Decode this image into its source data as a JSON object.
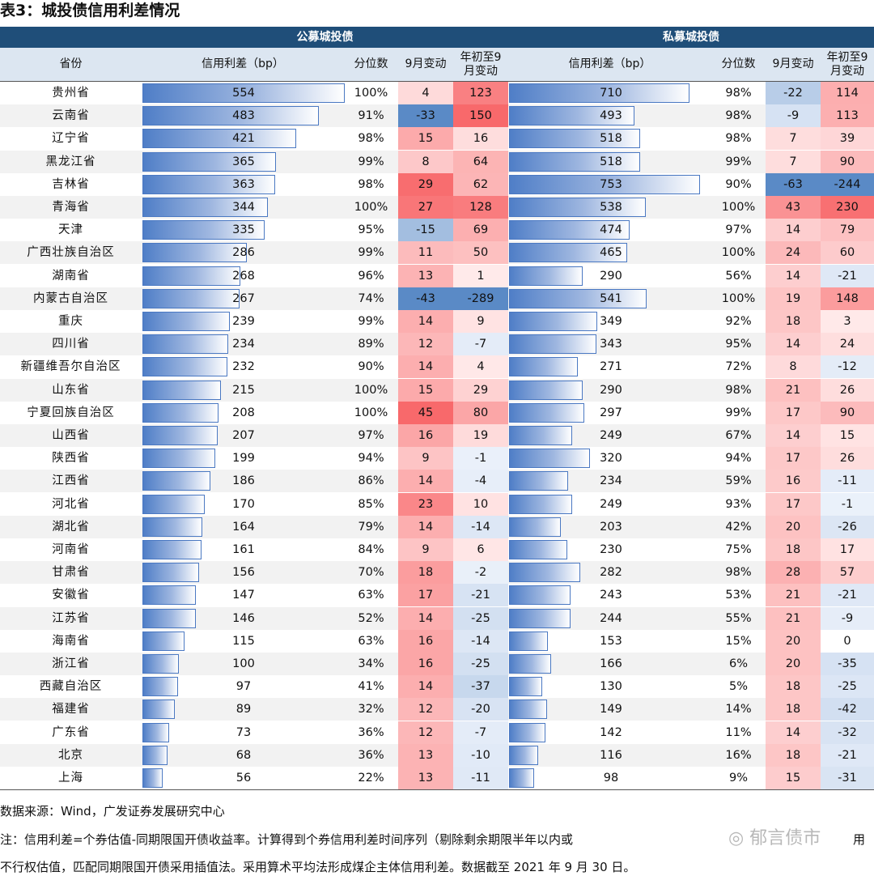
{
  "title": "表3：城投债信用利差情况",
  "group_headers": {
    "public": "公募城投债",
    "private": "私募城投债"
  },
  "column_headers": {
    "province": "省份",
    "spread": "信用利差（bp）",
    "percentile": "分位数",
    "sep_change": "9月变动",
    "ytd_change": "年初至9\n月变动"
  },
  "colors": {
    "header_bg": "#1f4e79",
    "subheader_bg": "#dce6f1",
    "bar": "#4f7ec7",
    "pos": "#f8696b",
    "neg": "#5a8ac6"
  },
  "rows": [
    {
      "province": "贵州省",
      "pub": {
        "spread": 554,
        "pct": "100%",
        "sep": 4,
        "ytd": 123
      },
      "pri": {
        "spread": 710,
        "pct": "98%",
        "sep": -22,
        "ytd": 114
      }
    },
    {
      "province": "云南省",
      "pub": {
        "spread": 483,
        "pct": "91%",
        "sep": -33,
        "ytd": 150
      },
      "pri": {
        "spread": 493,
        "pct": "98%",
        "sep": -9,
        "ytd": 113
      }
    },
    {
      "province": "辽宁省",
      "pub": {
        "spread": 421,
        "pct": "98%",
        "sep": 15,
        "ytd": 16
      },
      "pri": {
        "spread": 518,
        "pct": "98%",
        "sep": 7,
        "ytd": 39
      }
    },
    {
      "province": "黑龙江省",
      "pub": {
        "spread": 365,
        "pct": "99%",
        "sep": 8,
        "ytd": 64
      },
      "pri": {
        "spread": 518,
        "pct": "99%",
        "sep": 7,
        "ytd": 90
      }
    },
    {
      "province": "吉林省",
      "pub": {
        "spread": 363,
        "pct": "98%",
        "sep": 29,
        "ytd": 62
      },
      "pri": {
        "spread": 753,
        "pct": "90%",
        "sep": -63,
        "ytd": -244
      }
    },
    {
      "province": "青海省",
      "pub": {
        "spread": 344,
        "pct": "100%",
        "sep": 27,
        "ytd": 128
      },
      "pri": {
        "spread": 538,
        "pct": "100%",
        "sep": 43,
        "ytd": 230
      }
    },
    {
      "province": "天津",
      "pub": {
        "spread": 335,
        "pct": "95%",
        "sep": -15,
        "ytd": 69
      },
      "pri": {
        "spread": 474,
        "pct": "97%",
        "sep": 14,
        "ytd": 79
      }
    },
    {
      "province": "广西壮族自治区",
      "pub": {
        "spread": 286,
        "pct": "99%",
        "sep": 11,
        "ytd": 50
      },
      "pri": {
        "spread": 465,
        "pct": "100%",
        "sep": 24,
        "ytd": 60
      }
    },
    {
      "province": "湖南省",
      "pub": {
        "spread": 268,
        "pct": "96%",
        "sep": 13,
        "ytd": 1
      },
      "pri": {
        "spread": 290,
        "pct": "56%",
        "sep": 14,
        "ytd": -21
      }
    },
    {
      "province": "内蒙古自治区",
      "pub": {
        "spread": 267,
        "pct": "74%",
        "sep": -43,
        "ytd": -289
      },
      "pri": {
        "spread": 541,
        "pct": "100%",
        "sep": 19,
        "ytd": 148
      }
    },
    {
      "province": "重庆",
      "pub": {
        "spread": 239,
        "pct": "99%",
        "sep": 14,
        "ytd": 9
      },
      "pri": {
        "spread": 349,
        "pct": "92%",
        "sep": 18,
        "ytd": 3
      }
    },
    {
      "province": "四川省",
      "pub": {
        "spread": 234,
        "pct": "89%",
        "sep": 12,
        "ytd": -7
      },
      "pri": {
        "spread": 343,
        "pct": "95%",
        "sep": 14,
        "ytd": 24
      }
    },
    {
      "province": "新疆维吾尔自治区",
      "pub": {
        "spread": 232,
        "pct": "90%",
        "sep": 14,
        "ytd": 4
      },
      "pri": {
        "spread": 271,
        "pct": "72%",
        "sep": 8,
        "ytd": -12
      }
    },
    {
      "province": "山东省",
      "pub": {
        "spread": 215,
        "pct": "100%",
        "sep": 15,
        "ytd": 29
      },
      "pri": {
        "spread": 290,
        "pct": "98%",
        "sep": 21,
        "ytd": 26
      }
    },
    {
      "province": "宁夏回族自治区",
      "pub": {
        "spread": 208,
        "pct": "100%",
        "sep": 45,
        "ytd": 80
      },
      "pri": {
        "spread": 297,
        "pct": "99%",
        "sep": 17,
        "ytd": 90
      }
    },
    {
      "province": "山西省",
      "pub": {
        "spread": 207,
        "pct": "97%",
        "sep": 16,
        "ytd": 19
      },
      "pri": {
        "spread": 249,
        "pct": "67%",
        "sep": 14,
        "ytd": 15
      }
    },
    {
      "province": "陕西省",
      "pub": {
        "spread": 199,
        "pct": "94%",
        "sep": 9,
        "ytd": -1
      },
      "pri": {
        "spread": 320,
        "pct": "94%",
        "sep": 17,
        "ytd": 26
      }
    },
    {
      "province": "江西省",
      "pub": {
        "spread": 186,
        "pct": "86%",
        "sep": 14,
        "ytd": -4
      },
      "pri": {
        "spread": 234,
        "pct": "59%",
        "sep": 16,
        "ytd": -11
      }
    },
    {
      "province": "河北省",
      "pub": {
        "spread": 170,
        "pct": "85%",
        "sep": 23,
        "ytd": 10
      },
      "pri": {
        "spread": 249,
        "pct": "93%",
        "sep": 17,
        "ytd": -1
      }
    },
    {
      "province": "湖北省",
      "pub": {
        "spread": 164,
        "pct": "79%",
        "sep": 14,
        "ytd": -14
      },
      "pri": {
        "spread": 203,
        "pct": "42%",
        "sep": 20,
        "ytd": -26
      }
    },
    {
      "province": "河南省",
      "pub": {
        "spread": 161,
        "pct": "84%",
        "sep": 9,
        "ytd": 6
      },
      "pri": {
        "spread": 230,
        "pct": "75%",
        "sep": 18,
        "ytd": 17
      }
    },
    {
      "province": "甘肃省",
      "pub": {
        "spread": 156,
        "pct": "70%",
        "sep": 18,
        "ytd": -2
      },
      "pri": {
        "spread": 282,
        "pct": "98%",
        "sep": 28,
        "ytd": 57
      }
    },
    {
      "province": "安徽省",
      "pub": {
        "spread": 147,
        "pct": "63%",
        "sep": 17,
        "ytd": -21
      },
      "pri": {
        "spread": 243,
        "pct": "53%",
        "sep": 21,
        "ytd": -21
      }
    },
    {
      "province": "江苏省",
      "pub": {
        "spread": 146,
        "pct": "52%",
        "sep": 14,
        "ytd": -25
      },
      "pri": {
        "spread": 244,
        "pct": "55%",
        "sep": 21,
        "ytd": -9
      }
    },
    {
      "province": "海南省",
      "pub": {
        "spread": 115,
        "pct": "63%",
        "sep": 16,
        "ytd": -14
      },
      "pri": {
        "spread": 153,
        "pct": "15%",
        "sep": 20,
        "ytd": 0
      }
    },
    {
      "province": "浙江省",
      "pub": {
        "spread": 100,
        "pct": "34%",
        "sep": 16,
        "ytd": -25
      },
      "pri": {
        "spread": 166,
        "pct": "6%",
        "sep": 20,
        "ytd": -35
      }
    },
    {
      "province": "西藏自治区",
      "pub": {
        "spread": 97,
        "pct": "41%",
        "sep": 14,
        "ytd": -37
      },
      "pri": {
        "spread": 130,
        "pct": "5%",
        "sep": 18,
        "ytd": -25
      }
    },
    {
      "province": "福建省",
      "pub": {
        "spread": 89,
        "pct": "32%",
        "sep": 12,
        "ytd": -20
      },
      "pri": {
        "spread": 149,
        "pct": "14%",
        "sep": 18,
        "ytd": -42
      }
    },
    {
      "province": "广东省",
      "pub": {
        "spread": 73,
        "pct": "36%",
        "sep": 12,
        "ytd": -7
      },
      "pri": {
        "spread": 142,
        "pct": "11%",
        "sep": 14,
        "ytd": -32
      }
    },
    {
      "province": "北京",
      "pub": {
        "spread": 68,
        "pct": "36%",
        "sep": 13,
        "ytd": -10
      },
      "pri": {
        "spread": 116,
        "pct": "16%",
        "sep": 18,
        "ytd": -21
      }
    },
    {
      "province": "上海",
      "pub": {
        "spread": 56,
        "pct": "22%",
        "sep": 13,
        "ytd": -11
      },
      "pri": {
        "spread": 98,
        "pct": "9%",
        "sep": 15,
        "ytd": -31
      }
    }
  ],
  "footer": {
    "source": "数据来源：Wind，广发证券发展研究中心",
    "note_line1": "注：信用利差=个券估值-同期限国开债收益率。计算得到个券信用利差时间序列（剔除剩余期限半年以内或",
    "note_line1_tail": "用",
    "note_line2": "不行权估值，匹配同期限国开债采用插值法。采用算术平均法形成煤企主体信用利差。数据截至 2021 年 9 月 30 日。",
    "watermark": "郁言债市"
  }
}
